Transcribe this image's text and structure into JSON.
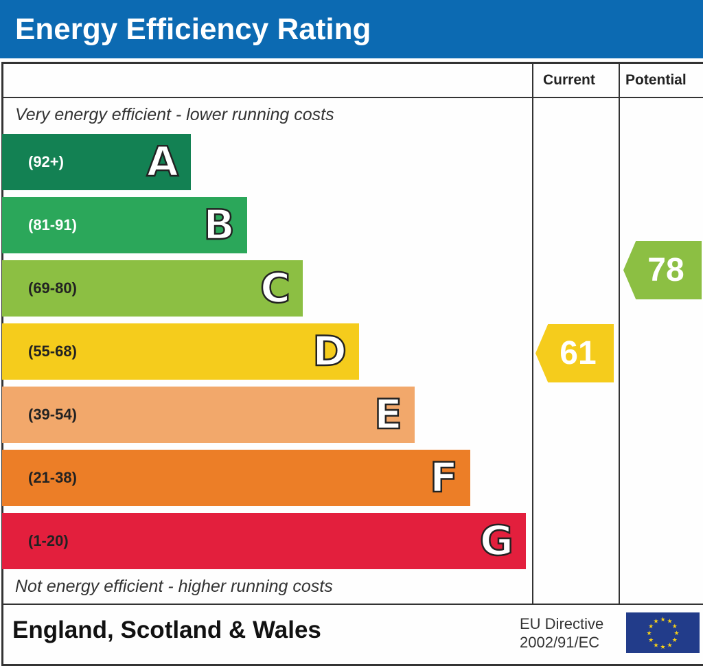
{
  "header": {
    "title": "Energy Efficiency Rating"
  },
  "columns": {
    "current": "Current",
    "potential": "Potential"
  },
  "notes": {
    "top": "Very energy efficient - lower running costs",
    "bottom": "Not energy efficient - higher running costs"
  },
  "footer": {
    "country": "England, Scotland & Wales",
    "directive_line1": "EU Directive",
    "directive_line2": "2002/91/EC",
    "flag_icon": "eu-flag-icon"
  },
  "chart_data": {
    "type": "bar",
    "categories": [
      "A",
      "B",
      "C",
      "D",
      "E",
      "F",
      "G"
    ],
    "ranges": [
      "(92+)",
      "(81-91)",
      "(69-80)",
      "(55-68)",
      "(39-54)",
      "(21-38)",
      "(1-20)"
    ],
    "colors": [
      "#138153",
      "#2ba75a",
      "#8cbf43",
      "#f5cc1c",
      "#f2a86b",
      "#ec7e27",
      "#e31f3d"
    ],
    "range_text_colors": [
      "#ffffff",
      "#ffffff",
      "#222222",
      "#222222",
      "#222222",
      "#222222",
      "#222222"
    ],
    "current": {
      "value": 61,
      "band": "D",
      "color": "#f5cc1c"
    },
    "potential": {
      "value": 78,
      "band": "C",
      "color": "#8cbf43"
    }
  }
}
